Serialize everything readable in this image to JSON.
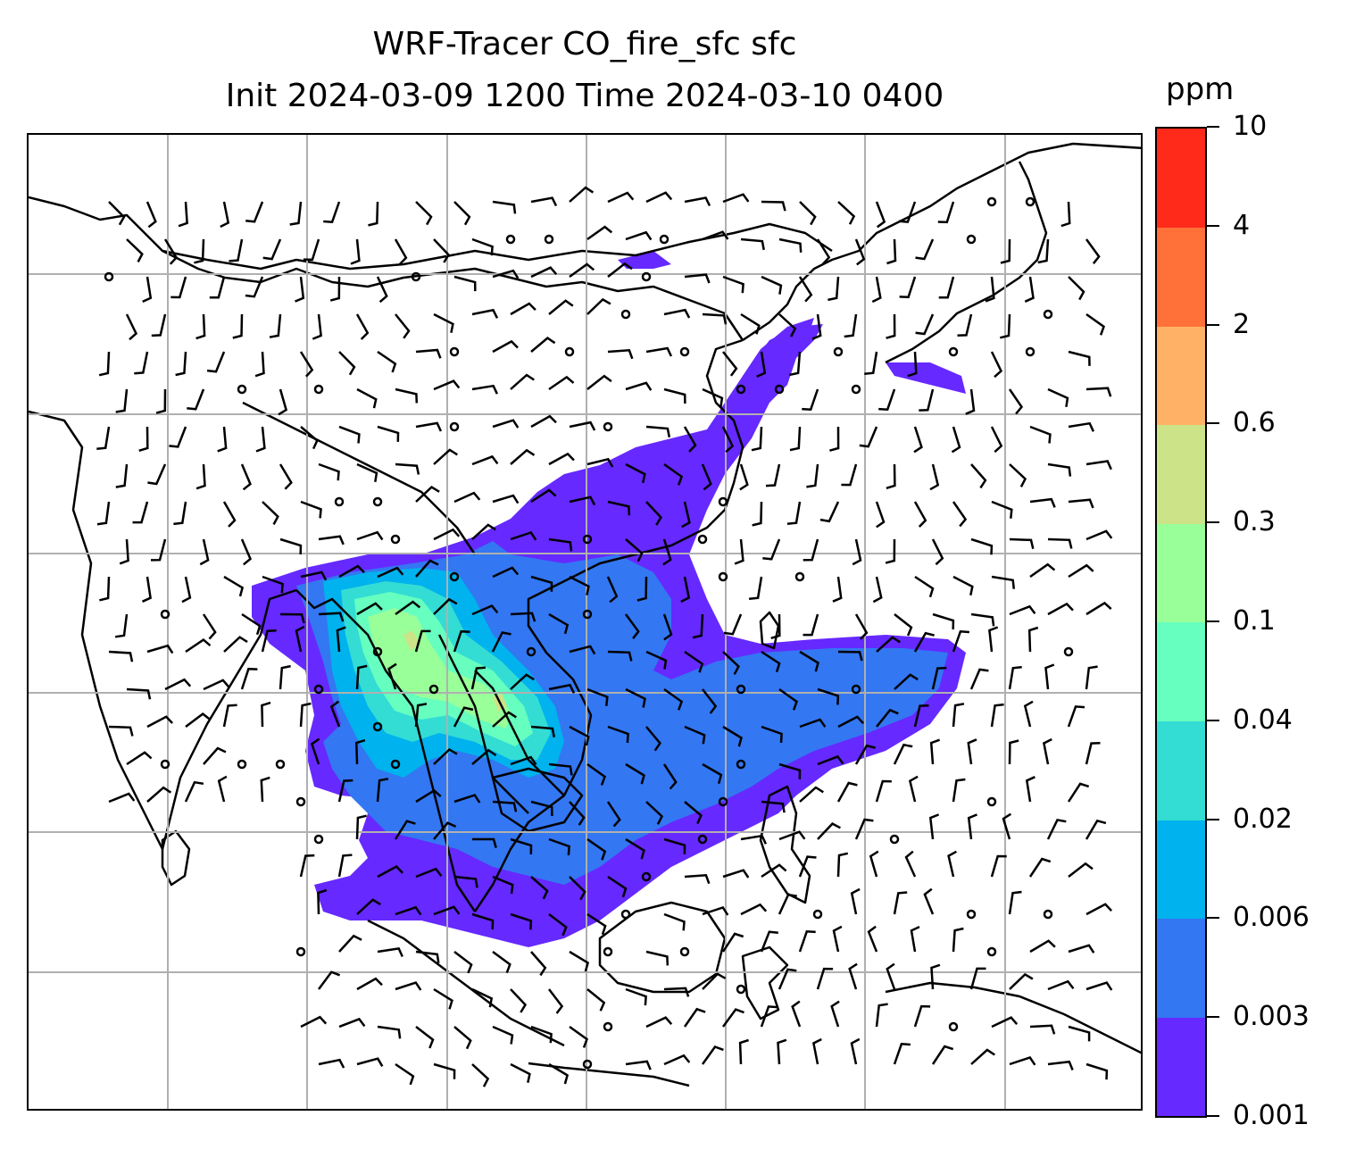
{
  "title": {
    "line1": "WRF-Tracer CO_fire_sfc sfc",
    "line2": "Init 2024-03-09 1200 Time 2024-03-10 0400"
  },
  "colorbar": {
    "unit": "ppm",
    "levels": [
      "0.001",
      "0.003",
      "0.006",
      "0.02",
      "0.04",
      "0.1",
      "0.3",
      "0.6",
      "2",
      "4",
      "10"
    ],
    "colors": [
      "#6629ff",
      "#3377f2",
      "#00b2ed",
      "#33ddd4",
      "#66ffbf",
      "#99ff99",
      "#cce388",
      "#ffb266",
      "#ff7138",
      "#ff2a1a"
    ]
  },
  "map": {
    "gridlines": true,
    "coastline_color": "#000000",
    "grid_color": "#b0b0b0"
  }
}
